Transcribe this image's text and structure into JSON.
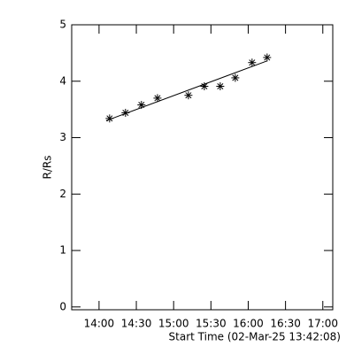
{
  "chart_data": {
    "type": "scatter",
    "xlabel": "Start Time (02-Mar-25 13:42:08)",
    "ylabel": "R/Rs",
    "x": [
      848.5,
      861.3,
      874.1,
      887.0,
      911.9,
      924.7,
      937.5,
      949.6,
      963.1,
      975.2
    ],
    "values": [
      3.34,
      3.44,
      3.58,
      3.7,
      3.75,
      3.91,
      3.91,
      4.06,
      4.33,
      4.42
    ],
    "fit": {
      "x": [
        845.7,
        975.2
      ],
      "values": [
        3.3,
        4.36
      ]
    },
    "color": "#000000",
    "xlim": [
      818,
      1028
    ],
    "xticks": [
      {
        "value": 840,
        "label": "14:00"
      },
      {
        "value": 870,
        "label": "14:30"
      },
      {
        "value": 900,
        "label": "15:00"
      },
      {
        "value": 930,
        "label": "15:30"
      },
      {
        "value": 960,
        "label": "16:00"
      },
      {
        "value": 990,
        "label": "16:30"
      },
      {
        "value": 1020,
        "label": "17:00"
      }
    ],
    "ylim": [
      -0.05,
      5
    ],
    "yticks": [
      0,
      1,
      2,
      3,
      4,
      5
    ]
  }
}
